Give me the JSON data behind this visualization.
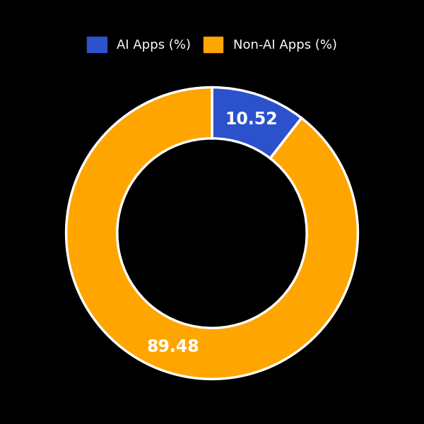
{
  "labels": [
    "AI Apps (%)",
    "Non-AI Apps (%)"
  ],
  "values": [
    10.52,
    89.48
  ],
  "colors": [
    "#2B52CC",
    "#FFA500"
  ],
  "text_labels": [
    "10.52",
    "89.48"
  ],
  "text_color": "white",
  "background_color": "#000000",
  "donut_width": 0.35,
  "startangle": 90,
  "legend_fontsize": 13,
  "label_fontsize": 17,
  "edgecolor": "white",
  "edgewidth": 2.5
}
